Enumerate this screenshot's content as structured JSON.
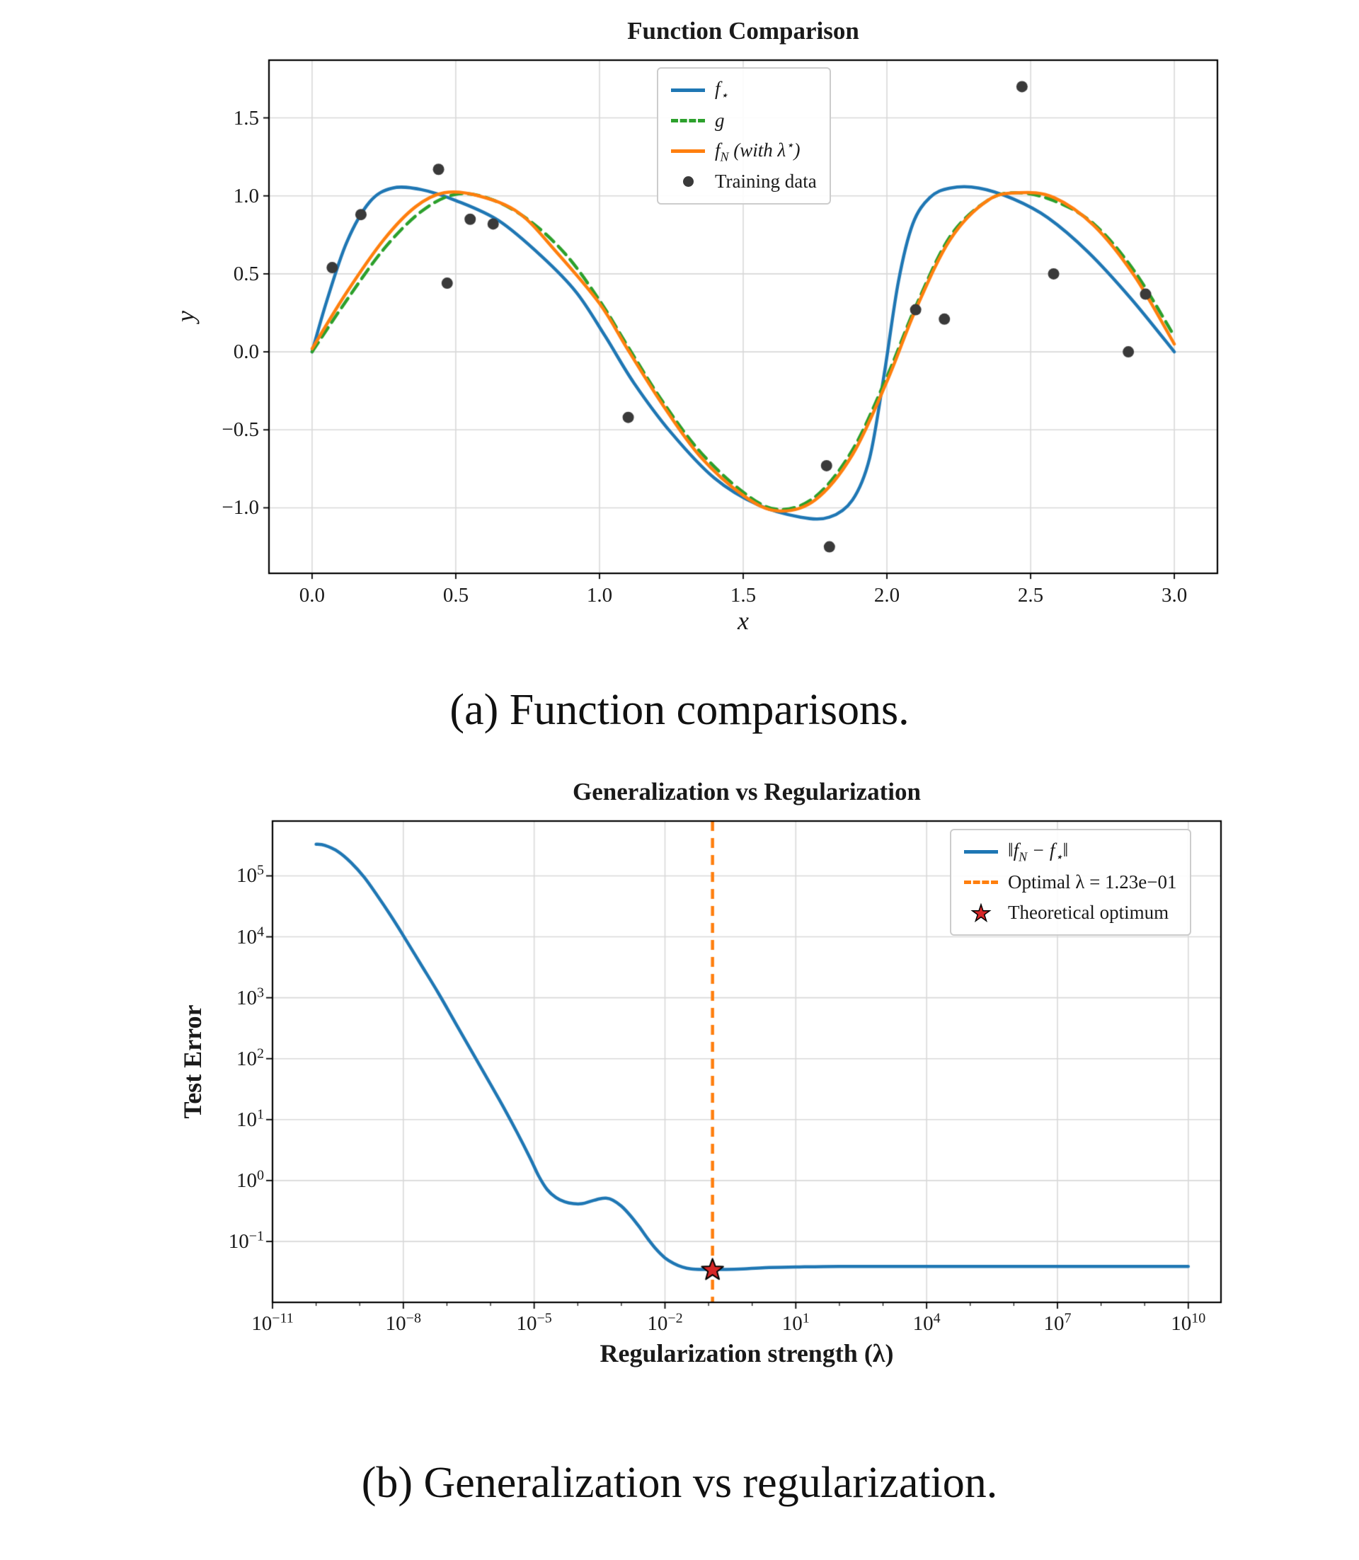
{
  "page": {
    "background": "#ffffff",
    "text_color": "#1a1a1a"
  },
  "chart_data": [
    {
      "id": "function-comparison",
      "type": "line",
      "title": "Function Comparison",
      "xlabel": "x",
      "ylabel": "y",
      "caption": "(a) Function comparisons.",
      "grid": true,
      "legend_position": "upper center",
      "xlim": [
        -0.15,
        3.15
      ],
      "ylim": [
        -1.42,
        1.87
      ],
      "x_ticks": [
        0.0,
        0.5,
        1.0,
        1.5,
        2.0,
        2.5,
        3.0
      ],
      "x_tick_labels": [
        "0.0",
        "0.5",
        "1.0",
        "1.5",
        "2.0",
        "2.5",
        "3.0"
      ],
      "y_ticks": [
        -1.0,
        -0.5,
        0.0,
        0.5,
        1.0,
        1.5
      ],
      "y_tick_labels": [
        "−1.0",
        "−0.5",
        "0.0",
        "0.5",
        "1.0",
        "1.5"
      ],
      "legend": [
        {
          "label": "f_{⋆}",
          "swatch": "line",
          "color": "#1f77b4",
          "dashed": false,
          "italic": true
        },
        {
          "label": "g",
          "swatch": "line",
          "color": "#2ca02c",
          "dashed": true,
          "italic": true
        },
        {
          "label": "f_{N} (with λ^{⋆})",
          "swatch": "line",
          "color": "#ff7f0e",
          "dashed": false,
          "italic": true
        },
        {
          "label": "Training data",
          "swatch": "dot",
          "color": "#3a3a3a",
          "italic": false
        }
      ],
      "series": [
        {
          "name": "f_{⋆}",
          "color": "#1f77b4",
          "style": "solid",
          "width": 4.5,
          "points": [
            [
              0.0,
              0.0
            ],
            [
              0.05,
              0.32
            ],
            [
              0.12,
              0.7
            ],
            [
              0.2,
              0.96
            ],
            [
              0.28,
              1.05
            ],
            [
              0.38,
              1.04
            ],
            [
              0.5,
              0.97
            ],
            [
              0.65,
              0.84
            ],
            [
              0.8,
              0.61
            ],
            [
              0.92,
              0.38
            ],
            [
              1.02,
              0.1
            ],
            [
              1.12,
              -0.2
            ],
            [
              1.25,
              -0.52
            ],
            [
              1.4,
              -0.81
            ],
            [
              1.55,
              -0.98
            ],
            [
              1.7,
              -1.06
            ],
            [
              1.8,
              -1.06
            ],
            [
              1.88,
              -0.95
            ],
            [
              1.94,
              -0.68
            ],
            [
              1.99,
              -0.15
            ],
            [
              2.04,
              0.45
            ],
            [
              2.09,
              0.82
            ],
            [
              2.15,
              0.99
            ],
            [
              2.22,
              1.05
            ],
            [
              2.32,
              1.05
            ],
            [
              2.44,
              0.98
            ],
            [
              2.56,
              0.86
            ],
            [
              2.7,
              0.64
            ],
            [
              2.85,
              0.34
            ],
            [
              3.0,
              0.0
            ]
          ]
        },
        {
          "name": "g",
          "color": "#2ca02c",
          "style": "dashed",
          "width": 4.5,
          "points": [
            [
              0.0,
              0.0
            ],
            [
              0.12,
              0.33
            ],
            [
              0.25,
              0.66
            ],
            [
              0.38,
              0.9
            ],
            [
              0.5,
              1.01
            ],
            [
              0.62,
              0.98
            ],
            [
              0.75,
              0.85
            ],
            [
              0.88,
              0.63
            ],
            [
              1.0,
              0.33
            ],
            [
              1.1,
              0.03
            ],
            [
              1.22,
              -0.32
            ],
            [
              1.35,
              -0.64
            ],
            [
              1.5,
              -0.9
            ],
            [
              1.62,
              -1.01
            ],
            [
              1.75,
              -0.93
            ],
            [
              1.88,
              -0.63
            ],
            [
              2.0,
              -0.16
            ],
            [
              2.1,
              0.29
            ],
            [
              2.22,
              0.74
            ],
            [
              2.35,
              0.97
            ],
            [
              2.45,
              1.02
            ],
            [
              2.58,
              0.97
            ],
            [
              2.72,
              0.82
            ],
            [
              2.86,
              0.52
            ],
            [
              3.0,
              0.1
            ]
          ]
        },
        {
          "name": "f_{N} (with λ^{⋆})",
          "color": "#ff7f0e",
          "style": "solid",
          "width": 4.5,
          "points": [
            [
              0.0,
              0.02
            ],
            [
              0.12,
              0.38
            ],
            [
              0.25,
              0.72
            ],
            [
              0.36,
              0.93
            ],
            [
              0.46,
              1.02
            ],
            [
              0.58,
              1.0
            ],
            [
              0.72,
              0.89
            ],
            [
              0.85,
              0.64
            ],
            [
              1.0,
              0.31
            ],
            [
              1.1,
              0.01
            ],
            [
              1.22,
              -0.34
            ],
            [
              1.35,
              -0.67
            ],
            [
              1.5,
              -0.92
            ],
            [
              1.62,
              -1.02
            ],
            [
              1.75,
              -0.95
            ],
            [
              1.88,
              -0.66
            ],
            [
              2.0,
              -0.19
            ],
            [
              2.1,
              0.27
            ],
            [
              2.22,
              0.72
            ],
            [
              2.35,
              0.97
            ],
            [
              2.46,
              1.02
            ],
            [
              2.58,
              0.99
            ],
            [
              2.72,
              0.81
            ],
            [
              2.86,
              0.49
            ],
            [
              3.0,
              0.05
            ]
          ]
        }
      ],
      "scatter": {
        "name": "Training data",
        "color": "#3a3a3a",
        "radius": 8,
        "points": [
          [
            0.07,
            0.54
          ],
          [
            0.17,
            0.88
          ],
          [
            0.44,
            1.17
          ],
          [
            0.47,
            0.44
          ],
          [
            0.55,
            0.85
          ],
          [
            0.63,
            0.82
          ],
          [
            1.1,
            -0.42
          ],
          [
            1.79,
            -0.73
          ],
          [
            1.8,
            -1.25
          ],
          [
            2.1,
            0.27
          ],
          [
            2.2,
            0.21
          ],
          [
            2.47,
            1.7
          ],
          [
            2.58,
            0.5
          ],
          [
            2.84,
            0.0
          ],
          [
            2.9,
            0.37
          ]
        ]
      }
    },
    {
      "id": "generalization-vs-regularization",
      "type": "line",
      "title": "Generalization vs Regularization",
      "xlabel": "Regularization strength (λ)",
      "ylabel": "Test Error",
      "caption": "(b) Generalization vs regularization.",
      "grid": true,
      "xscale": "log",
      "yscale": "log",
      "legend_position": "upper right",
      "xlim_exp": [
        -11,
        10.75
      ],
      "ylim_exp": [
        -2,
        5.9
      ],
      "x_tick_exps": [
        -11,
        -8,
        -5,
        -2,
        1,
        4,
        7,
        10
      ],
      "y_tick_exps": [
        -1,
        0,
        1,
        2,
        3,
        4,
        5
      ],
      "legend": [
        {
          "label": "‖f_{N} − f_{⋆}‖",
          "swatch": "line",
          "color": "#1f77b4",
          "dashed": false,
          "italic": true
        },
        {
          "label": "Optimal λ = 1.23e−01",
          "swatch": "line",
          "color": "#ff7f0e",
          "dashed": true,
          "italic": false
        },
        {
          "label": "Theoretical optimum",
          "swatch": "star",
          "color": "#d62728",
          "italic": false
        }
      ],
      "series": [
        {
          "name": "‖f_{N} − f_{⋆}‖",
          "color": "#1f77b4",
          "style": "solid",
          "width": 4.5,
          "points_exp": [
            [
              -10,
              5.52
            ],
            [
              -9.8,
              5.5
            ],
            [
              -9.5,
              5.4
            ],
            [
              -9.2,
              5.22
            ],
            [
              -8.9,
              4.98
            ],
            [
              -8.6,
              4.68
            ],
            [
              -8.3,
              4.36
            ],
            [
              -8.0,
              4.02
            ],
            [
              -7.6,
              3.55
            ],
            [
              -7.2,
              3.08
            ],
            [
              -6.8,
              2.58
            ],
            [
              -6.4,
              2.08
            ],
            [
              -6.0,
              1.58
            ],
            [
              -5.7,
              1.2
            ],
            [
              -5.4,
              0.8
            ],
            [
              -5.1,
              0.38
            ],
            [
              -4.9,
              0.08
            ],
            [
              -4.7,
              -0.15
            ],
            [
              -4.5,
              -0.28
            ],
            [
              -4.3,
              -0.35
            ],
            [
              -4.1,
              -0.38
            ],
            [
              -3.9,
              -0.38
            ],
            [
              -3.7,
              -0.34
            ],
            [
              -3.5,
              -0.3
            ],
            [
              -3.35,
              -0.29
            ],
            [
              -3.2,
              -0.32
            ],
            [
              -3.0,
              -0.42
            ],
            [
              -2.8,
              -0.57
            ],
            [
              -2.6,
              -0.75
            ],
            [
              -2.4,
              -0.95
            ],
            [
              -2.2,
              -1.13
            ],
            [
              -2.0,
              -1.27
            ],
            [
              -1.8,
              -1.36
            ],
            [
              -1.6,
              -1.42
            ],
            [
              -1.4,
              -1.45
            ],
            [
              -1.1,
              -1.46
            ],
            [
              -0.91,
              -1.46
            ],
            [
              -0.6,
              -1.46
            ],
            [
              -0.2,
              -1.45
            ],
            [
              0.3,
              -1.43
            ],
            [
              1.0,
              -1.42
            ],
            [
              2.0,
              -1.41
            ],
            [
              3.5,
              -1.41
            ],
            [
              5.0,
              -1.41
            ],
            [
              7.0,
              -1.41
            ],
            [
              8.5,
              -1.41
            ],
            [
              10.0,
              -1.41
            ]
          ]
        }
      ],
      "vline": {
        "name": "Optimal λ = 1.23e−01",
        "x_exp": -0.91,
        "value": "1.23e−01",
        "color": "#ff7f0e",
        "style": "dashed",
        "width": 4.5
      },
      "marker": {
        "name": "Theoretical optimum",
        "shape": "star",
        "x_exp": -0.91,
        "y_exp": -1.47,
        "color": "#d62728",
        "edge_color": "#000000",
        "size": 16
      }
    }
  ]
}
